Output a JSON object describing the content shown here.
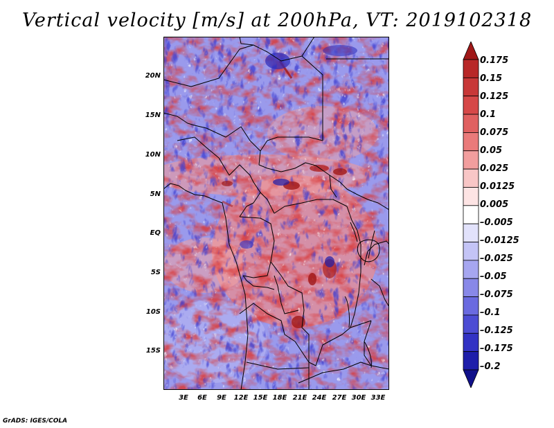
{
  "title": "Vertical velocity [m/s] at 200hPa, VT: 2019102318",
  "credit": "GrADS: IGES/COLA",
  "map": {
    "lat_labels": [
      "20N",
      "15N",
      "10N",
      "5N",
      "EQ",
      "5S",
      "10S",
      "15S"
    ],
    "lon_labels": [
      "3E",
      "6E",
      "9E",
      "12E",
      "15E",
      "18E",
      "21E",
      "24E",
      "27E",
      "30E",
      "33E"
    ]
  },
  "colorbar": {
    "labels": [
      "0.175",
      "0.15",
      "0.125",
      "0.1",
      "0.075",
      "0.05",
      "0.025",
      "0.0125",
      "0.005",
      "–0.005",
      "–0.0125",
      "–0.025",
      "–0.05",
      "–0.075",
      "–0.1",
      "–0.125",
      "–0.175",
      "–0.2"
    ],
    "colors": [
      "#a01818",
      "#b82828",
      "#c83838",
      "#d64848",
      "#e06060",
      "#ea7a7a",
      "#f29e9e",
      "#f8c6c6",
      "#fde4e4",
      "#ffffff",
      "#e2e2fb",
      "#c4c4f6",
      "#a6a6f0",
      "#8888e8",
      "#6a6ae0",
      "#4c4cd4",
      "#3232c4",
      "#1e1eaa",
      "#10108a"
    ]
  }
}
